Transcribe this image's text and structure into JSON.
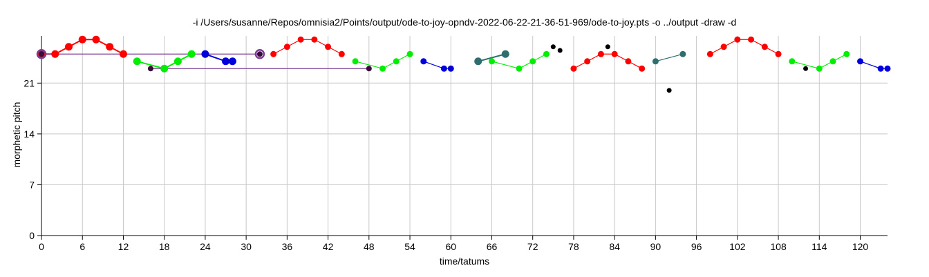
{
  "chart_data": {
    "type": "scatter",
    "title": "-i /Users/susanne/Repos/omnisia2/Points/output/ode-to-joy-opndv-2022-06-22-21-36-51-969/ode-to-joy.pts -o ../output -draw -d",
    "xlabel": "time/tatums",
    "ylabel": "morphetic pitch",
    "xlim": [
      0,
      124
    ],
    "ylim": [
      0,
      27.5
    ],
    "x_ticks": [
      0,
      6,
      12,
      18,
      24,
      30,
      36,
      42,
      48,
      54,
      60,
      66,
      72,
      78,
      84,
      90,
      96,
      102,
      108,
      114,
      120
    ],
    "y_ticks": [
      0,
      7,
      14,
      21
    ],
    "grid": true,
    "colors": {
      "red": "#ff0000",
      "green": "#00ee00",
      "blue": "#0000dd",
      "purple": "#7a3c96",
      "teal": "#2e6e6e",
      "black": "#000000",
      "dark": "#3a0a3a",
      "gridline": "#c8c8c8",
      "axis": "#000000"
    },
    "series": [
      {
        "color": "red",
        "size": 5.5,
        "points": [
          [
            0,
            25
          ],
          [
            2,
            25
          ],
          [
            4,
            26
          ],
          [
            6,
            27
          ],
          [
            8,
            27
          ],
          [
            10,
            26
          ],
          [
            12,
            25
          ]
        ]
      },
      {
        "color": "green",
        "size": 5.5,
        "points": [
          [
            14,
            24
          ],
          [
            18,
            23
          ],
          [
            20,
            24
          ],
          [
            22,
            25
          ]
        ]
      },
      {
        "color": "blue",
        "size": 5.5,
        "points": [
          [
            24,
            25
          ],
          [
            27,
            24
          ],
          [
            28,
            24
          ]
        ]
      },
      {
        "color": "purple",
        "size": 0,
        "points": [
          [
            0,
            25
          ],
          [
            32,
            25
          ]
        ]
      },
      {
        "color": "purple",
        "size": 0,
        "points": [
          [
            16,
            23
          ],
          [
            48,
            23
          ]
        ]
      },
      {
        "color": "red",
        "size": 4.5,
        "points": [
          [
            34,
            25
          ],
          [
            36,
            26
          ],
          [
            38,
            27
          ],
          [
            40,
            27
          ],
          [
            42,
            26
          ],
          [
            44,
            25
          ]
        ]
      },
      {
        "color": "green",
        "size": 4.5,
        "points": [
          [
            46,
            24
          ],
          [
            50,
            23
          ],
          [
            52,
            24
          ],
          [
            54,
            25
          ]
        ]
      },
      {
        "color": "blue",
        "size": 4.5,
        "points": [
          [
            56,
            24
          ],
          [
            59,
            23
          ],
          [
            60,
            23
          ]
        ]
      },
      {
        "color": "teal",
        "size": 5.5,
        "points": [
          [
            64,
            24
          ],
          [
            68,
            25
          ]
        ]
      },
      {
        "color": "green",
        "size": 4.5,
        "points": [
          [
            66,
            24
          ],
          [
            70,
            23
          ],
          [
            72,
            24
          ],
          [
            74,
            25
          ]
        ]
      },
      {
        "color": "red",
        "size": 4.5,
        "points": [
          [
            78,
            23
          ],
          [
            80,
            24
          ],
          [
            82,
            25
          ],
          [
            84,
            25
          ],
          [
            86,
            24
          ],
          [
            88,
            23
          ]
        ]
      },
      {
        "color": "teal",
        "size": 4.5,
        "points": [
          [
            90,
            24
          ],
          [
            94,
            25
          ]
        ]
      },
      {
        "color": "red",
        "size": 4.5,
        "points": [
          [
            98,
            25
          ],
          [
            100,
            26
          ],
          [
            102,
            27
          ],
          [
            104,
            27
          ],
          [
            106,
            26
          ],
          [
            108,
            25
          ]
        ]
      },
      {
        "color": "green",
        "size": 4.5,
        "points": [
          [
            110,
            24
          ],
          [
            114,
            23
          ],
          [
            116,
            24
          ],
          [
            118,
            25
          ]
        ]
      },
      {
        "color": "blue",
        "size": 4.5,
        "points": [
          [
            120,
            24
          ],
          [
            123,
            23
          ],
          [
            124,
            23
          ]
        ]
      }
    ],
    "outlined_points": [
      {
        "color": "purple",
        "points": [
          [
            0,
            25
          ],
          [
            32,
            25
          ]
        ]
      }
    ],
    "extra_points": [
      {
        "color": "dark",
        "size": 4,
        "points": [
          [
            16,
            23
          ],
          [
            48,
            23
          ],
          [
            32,
            25
          ],
          [
            0,
            25
          ]
        ]
      },
      {
        "color": "black",
        "size": 3.5,
        "points": [
          [
            75,
            26
          ],
          [
            76,
            25.5
          ],
          [
            83,
            26
          ],
          [
            112,
            23
          ],
          [
            92,
            20
          ]
        ]
      }
    ]
  }
}
